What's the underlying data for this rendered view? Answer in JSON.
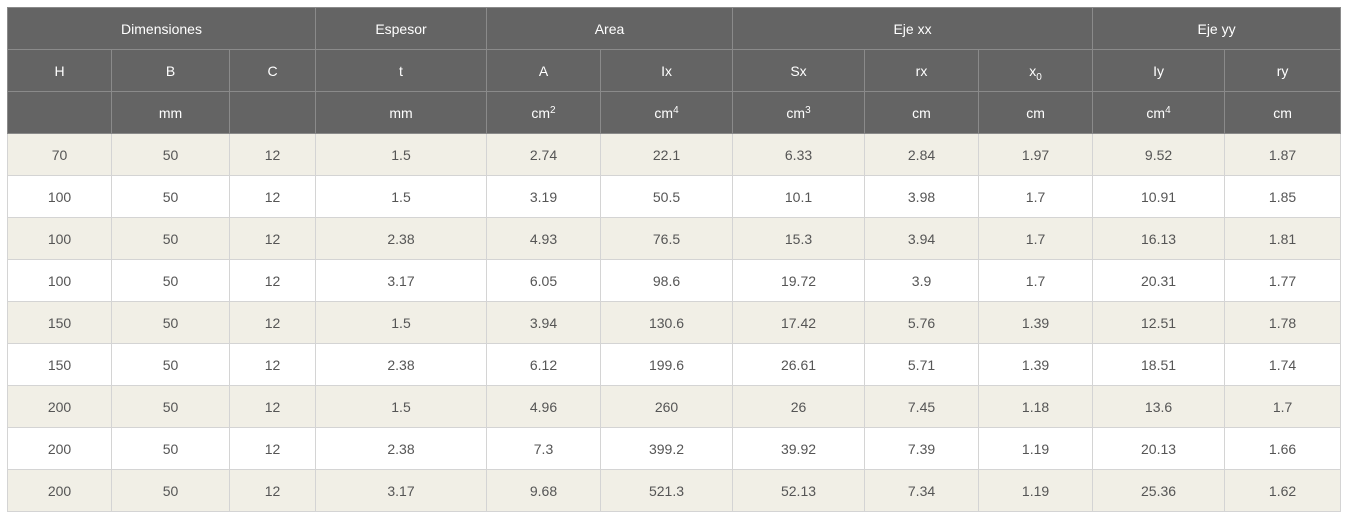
{
  "groups": {
    "dimensiones": "Dimensiones",
    "espesor": "Espesor",
    "area": "Area",
    "eje_xx": "Eje xx",
    "eje_yy": "Eje yy"
  },
  "columns": {
    "H": "H",
    "B": "B",
    "C": "C",
    "t": "t",
    "A": "A",
    "Ix": "Ix",
    "Sx": "Sx",
    "rx": "rx",
    "x0_base": "x",
    "x0_sub": "0",
    "Iy": "Iy",
    "ry": "ry"
  },
  "units": {
    "H": "",
    "B": "mm",
    "C": "",
    "t": "mm",
    "A_base": "cm",
    "A_exp": "2",
    "Ix_base": "cm",
    "Ix_exp": "4",
    "Sx_base": "cm",
    "Sx_exp": "3",
    "rx": "cm",
    "x0": "cm",
    "Iy_base": "cm",
    "Iy_exp": "4",
    "ry": "cm"
  },
  "rows": [
    [
      "70",
      "50",
      "12",
      "1.5",
      "2.74",
      "22.1",
      "6.33",
      "2.84",
      "1.97",
      "9.52",
      "1.87"
    ],
    [
      "100",
      "50",
      "12",
      "1.5",
      "3.19",
      "50.5",
      "10.1",
      "3.98",
      "1.7",
      "10.91",
      "1.85"
    ],
    [
      "100",
      "50",
      "12",
      "2.38",
      "4.93",
      "76.5",
      "15.3",
      "3.94",
      "1.7",
      "16.13",
      "1.81"
    ],
    [
      "100",
      "50",
      "12",
      "3.17",
      "6.05",
      "98.6",
      "19.72",
      "3.9",
      "1.7",
      "20.31",
      "1.77"
    ],
    [
      "150",
      "50",
      "12",
      "1.5",
      "3.94",
      "130.6",
      "17.42",
      "5.76",
      "1.39",
      "12.51",
      "1.78"
    ],
    [
      "150",
      "50",
      "12",
      "2.38",
      "6.12",
      "199.6",
      "26.61",
      "5.71",
      "1.39",
      "18.51",
      "1.74"
    ],
    [
      "200",
      "50",
      "12",
      "1.5",
      "4.96",
      "260",
      "26",
      "7.45",
      "1.18",
      "13.6",
      "1.7"
    ],
    [
      "200",
      "50",
      "12",
      "2.38",
      "7.3",
      "399.2",
      "39.92",
      "7.39",
      "1.19",
      "20.13",
      "1.66"
    ],
    [
      "200",
      "50",
      "12",
      "3.17",
      "9.68",
      "521.3",
      "52.13",
      "7.34",
      "1.19",
      "25.36",
      "1.62"
    ]
  ]
}
